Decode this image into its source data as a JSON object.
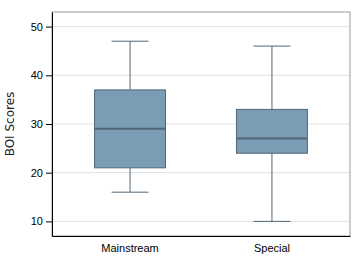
{
  "chart_data": {
    "type": "box",
    "categories": [
      "Mainstream",
      "Special"
    ],
    "boxes": [
      {
        "whisker_low": 16,
        "q1": 21,
        "median": 29,
        "q3": 37,
        "whisker_high": 47
      },
      {
        "whisker_low": 10,
        "q1": 24,
        "median": 27,
        "q3": 33,
        "whisker_high": 46
      }
    ],
    "ylabel": "BOI Scores",
    "ylim": [
      7,
      53
    ],
    "yticks": [
      10,
      20,
      30,
      40,
      50
    ],
    "color": "#7a9db5",
    "grid": true
  }
}
